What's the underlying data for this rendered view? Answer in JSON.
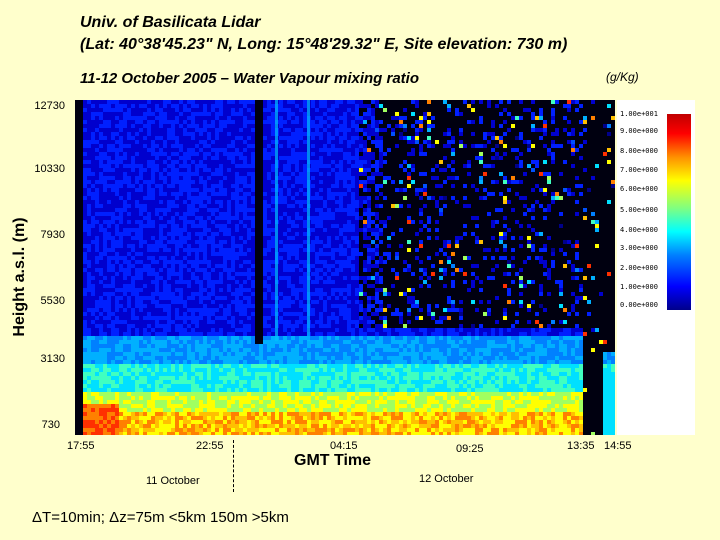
{
  "header": {
    "title_line1": "Univ. of Basilicata Lidar",
    "title_line2": "(Lat: 40°38'45.23\" N, Long: 15°48'29.32\" E, Site elevation: 730 m)",
    "subtitle": "11-12 October 2005 – Water Vapour mixing ratio",
    "unit": "(g/Kg)"
  },
  "footer": {
    "day1": "11 October",
    "day2": "12 October",
    "resolution_prefix": "T=10min;  ",
    "resolution_suffix": "z=75m <5km 150m >5km",
    "delta_symbol": "Δ"
  },
  "chart_data": {
    "type": "heatmap",
    "title": "11-12 October 2005 – Water Vapour mixing ratio",
    "xlabel": "GMT Time",
    "ylabel": "Height a.s.l. (m)",
    "x_ticks": [
      "17:55",
      "22:55",
      "04:15",
      "09:25",
      "13:35",
      "14:55"
    ],
    "y_ticks": [
      "12730",
      "10330",
      "7930",
      "5530",
      "3130",
      "730"
    ],
    "ylim": [
      730,
      12730
    ],
    "colorbar": {
      "unit": "g/Kg",
      "range": [
        0,
        10
      ],
      "ticks": [
        "1.00e+001",
        "9.00e+000",
        "8.00e+000",
        "7.00e+000",
        "6.00e+000",
        "5.00e+000",
        "4.00e+000",
        "3.00e+000",
        "2.00e+000",
        "1.00e+000",
        "0.00e+000"
      ],
      "colors": [
        "#00008b",
        "#0000ff",
        "#0080ff",
        "#00c0ff",
        "#00ffff",
        "#80ff80",
        "#ffff00",
        "#ffc000",
        "#ff8000",
        "#ff0000",
        "#c00000"
      ]
    },
    "description_values": {
      "boundary_layer_top_m": 3130,
      "max_mixing_ratio_near_ground_g_per_kg": 10,
      "upper_troposphere_g_per_kg": 0.5
    }
  }
}
